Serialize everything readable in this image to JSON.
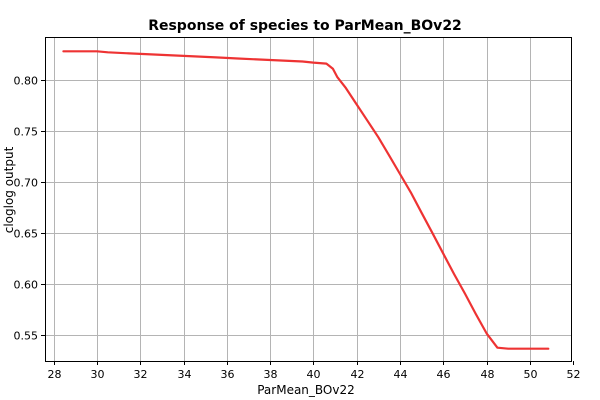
{
  "colors": {
    "background": "#ffffff",
    "plot_border": "#000000",
    "grid": "#b4b4b4",
    "series": "#ee3333",
    "text": "#000000"
  },
  "chart_data": {
    "type": "line",
    "title": "Response of species to ParMean_BOv22",
    "xlabel": "ParMean_BOv22",
    "ylabel": "cloglog output",
    "xlim": [
      27.6,
      51.9
    ],
    "ylim": [
      0.525,
      0.842
    ],
    "grid": true,
    "legend": "none",
    "x_ticks": [
      {
        "value": 28,
        "label": "28"
      },
      {
        "value": 30,
        "label": "30"
      },
      {
        "value": 32,
        "label": "32"
      },
      {
        "value": 34,
        "label": "34"
      },
      {
        "value": 36,
        "label": "36"
      },
      {
        "value": 38,
        "label": "38"
      },
      {
        "value": 40,
        "label": "40"
      },
      {
        "value": 42,
        "label": "42"
      },
      {
        "value": 44,
        "label": "44"
      },
      {
        "value": 46,
        "label": "46"
      },
      {
        "value": 48,
        "label": "48"
      },
      {
        "value": 50,
        "label": "50"
      },
      {
        "value": 52,
        "label": "52"
      }
    ],
    "y_ticks": [
      {
        "value": 0.55,
        "label": "0.55"
      },
      {
        "value": 0.6,
        "label": "0.60"
      },
      {
        "value": 0.65,
        "label": "0.65"
      },
      {
        "value": 0.7,
        "label": "0.70"
      },
      {
        "value": 0.75,
        "label": "0.75"
      },
      {
        "value": 0.8,
        "label": "0.80"
      }
    ],
    "series": [
      {
        "color": "#ee3333",
        "x": [
          28.45,
          30.0,
          30.5,
          31.5,
          32.5,
          33.5,
          34.5,
          35.5,
          36.5,
          37.5,
          38.5,
          39.5,
          40.0,
          40.6,
          40.9,
          41.1,
          41.5,
          42.0,
          42.5,
          43.0,
          43.5,
          44.0,
          44.5,
          45.0,
          45.5,
          46.0,
          46.5,
          47.0,
          47.5,
          48.0,
          48.5,
          49.0,
          49.5,
          50.0,
          50.5,
          50.85
        ],
        "y": [
          0.828,
          0.828,
          0.827,
          0.826,
          0.825,
          0.824,
          0.823,
          0.822,
          0.821,
          0.82,
          0.819,
          0.818,
          0.817,
          0.816,
          0.811,
          0.803,
          0.792,
          0.776,
          0.76,
          0.744,
          0.726,
          0.708,
          0.69,
          0.67,
          0.65,
          0.63,
          0.61,
          0.591,
          0.571,
          0.552,
          0.538,
          0.537,
          0.537,
          0.537,
          0.537,
          0.537
        ]
      }
    ]
  }
}
